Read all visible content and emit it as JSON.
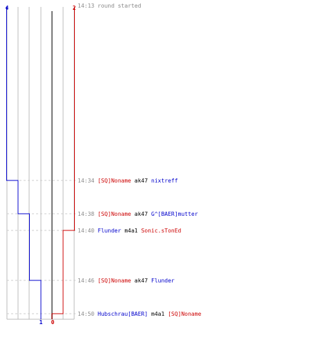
{
  "scores": {
    "blue_start": "4",
    "red_start": "2",
    "blue_end": "1",
    "red_end": "0"
  },
  "colors": {
    "blue_team": "#0000cc",
    "red_team": "#cc0000",
    "time": "#888888",
    "weapon": "#000000",
    "grid": "#bbbbbb",
    "center": "#777777",
    "guide": "#cccccc"
  },
  "events": [
    {
      "time": "14:13",
      "message": "round started"
    },
    {
      "time": "14:34",
      "killer": "[SQ]Noname",
      "killer_team": "red",
      "weapon": "ak47",
      "victim": "nixtreff",
      "victim_team": "blue",
      "blue_after": 3,
      "red_after": 2
    },
    {
      "time": "14:38",
      "killer": "[SQ]Noname",
      "killer_team": "red",
      "weapon": "ak47",
      "victim": "G^[BAER]mutter",
      "victim_team": "blue",
      "blue_after": 2,
      "red_after": 2
    },
    {
      "time": "14:40",
      "killer": "Flunder",
      "killer_team": "blue",
      "weapon": "m4a1",
      "victim": "Sonic.sTonEd",
      "victim_team": "red",
      "blue_after": 2,
      "red_after": 1
    },
    {
      "time": "14:46",
      "killer": "[SQ]Noname",
      "killer_team": "red",
      "weapon": "ak47",
      "victim": "Flunder",
      "victim_team": "blue",
      "blue_after": 1,
      "red_after": 1
    },
    {
      "time": "14:50",
      "killer": "Hubschrau[BAER]",
      "killer_team": "blue",
      "weapon": "m4a1",
      "victim": "[SQ]Noname",
      "victim_team": "red",
      "blue_after": 1,
      "red_after": 0
    }
  ]
}
